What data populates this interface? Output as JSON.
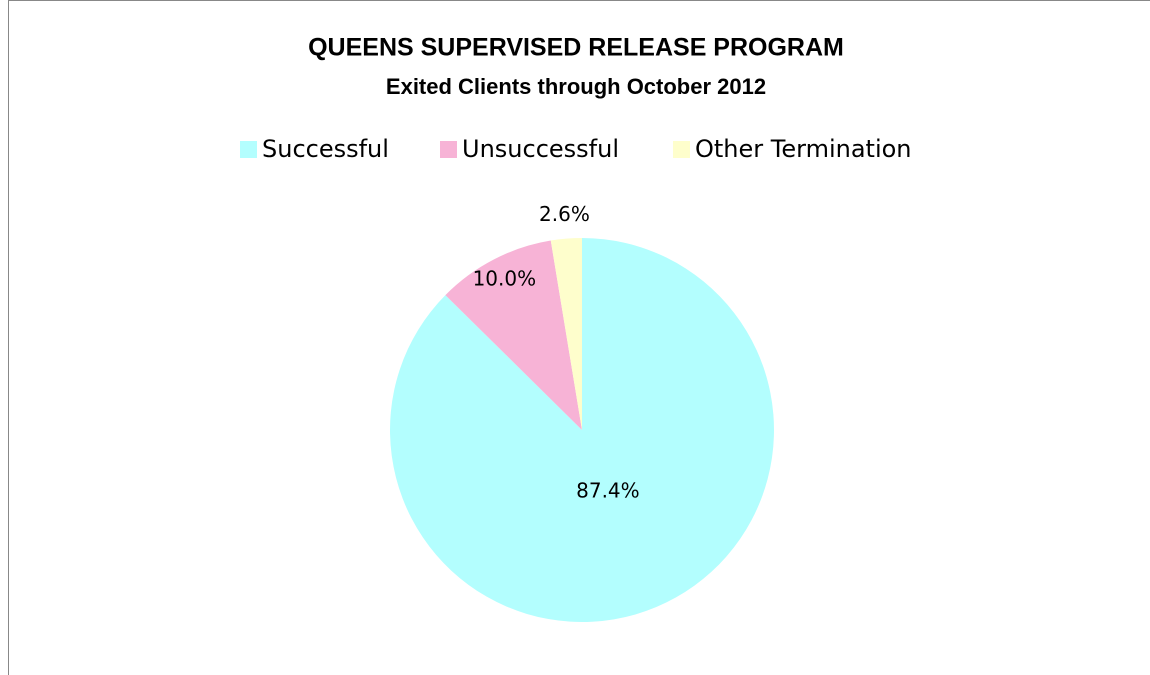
{
  "chart_data": {
    "type": "pie",
    "title": "QUEENS SUPERVISED RELEASE PROGRAM",
    "subtitle": "Exited Clients through October 2012",
    "categories": [
      "Successful",
      "Unsuccessful",
      "Other Termination"
    ],
    "values": [
      87.4,
      10.0,
      2.6
    ],
    "value_labels": [
      "87.4%",
      "10.0%",
      "2.6%"
    ],
    "colors": [
      "#b3fefe",
      "#f7b3d6",
      "#fefecc"
    ],
    "legend": "top"
  }
}
